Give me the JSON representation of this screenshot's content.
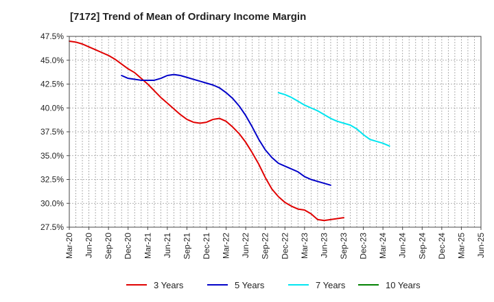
{
  "chart_data": {
    "type": "line",
    "title": "[7172]  Trend of Mean of Ordinary Income Margin",
    "xlabel": "",
    "ylabel": "",
    "x_ticks": [
      "Mar-20",
      "Jun-20",
      "Sep-20",
      "Dec-20",
      "Mar-21",
      "Jun-21",
      "Sep-21",
      "Dec-21",
      "Mar-22",
      "Jun-22",
      "Sep-22",
      "Dec-22",
      "Mar-23",
      "Jun-23",
      "Sep-23",
      "Dec-23",
      "Mar-24",
      "Jun-24",
      "Sep-24",
      "Dec-24",
      "Mar-25",
      "Jun-25"
    ],
    "y_ticks": [
      "47.5%",
      "45.0%",
      "42.5%",
      "40.0%",
      "37.5%",
      "35.0%",
      "32.5%",
      "30.0%",
      "27.5%"
    ],
    "ylim": [
      27.5,
      47.5
    ],
    "grid": true,
    "legend_position": "bottom",
    "series": [
      {
        "name": "3 Years",
        "color": "#e00000",
        "start_index": 0,
        "values": [
          47.0,
          46.9,
          46.7,
          46.4,
          46.1,
          45.8,
          45.5,
          45.1,
          44.6,
          44.1,
          43.7,
          43.1,
          42.5,
          41.8,
          41.1,
          40.5,
          39.9,
          39.3,
          38.8,
          38.5,
          38.4,
          38.5,
          38.8,
          38.9,
          38.6,
          38.0,
          37.3,
          36.4,
          35.3,
          34.1,
          32.7,
          31.5,
          30.7,
          30.1,
          29.7,
          29.4,
          29.3,
          28.9,
          28.3,
          28.2,
          28.3,
          28.4,
          28.5
        ]
      },
      {
        "name": "5 Years",
        "color": "#0000c8",
        "start_index": 8,
        "values": [
          43.4,
          43.1,
          43.0,
          42.9,
          42.9,
          42.9,
          43.1,
          43.4,
          43.5,
          43.4,
          43.2,
          43.0,
          42.8,
          42.6,
          42.4,
          42.1,
          41.6,
          41.0,
          40.2,
          39.2,
          38.0,
          36.7,
          35.6,
          34.8,
          34.2,
          33.9,
          33.6,
          33.3,
          32.8,
          32.5,
          32.3,
          32.1,
          31.9
        ]
      },
      {
        "name": "7 Years",
        "color": "#00e5f0",
        "start_index": 32,
        "values": [
          41.6,
          41.4,
          41.1,
          40.7,
          40.3,
          40.0,
          39.7,
          39.3,
          38.9,
          38.6,
          38.4,
          38.2,
          37.8,
          37.2,
          36.7,
          36.5,
          36.3,
          36.0
        ]
      },
      {
        "name": "10 Years",
        "color": "#008000",
        "start_index": 0,
        "values": []
      }
    ]
  }
}
